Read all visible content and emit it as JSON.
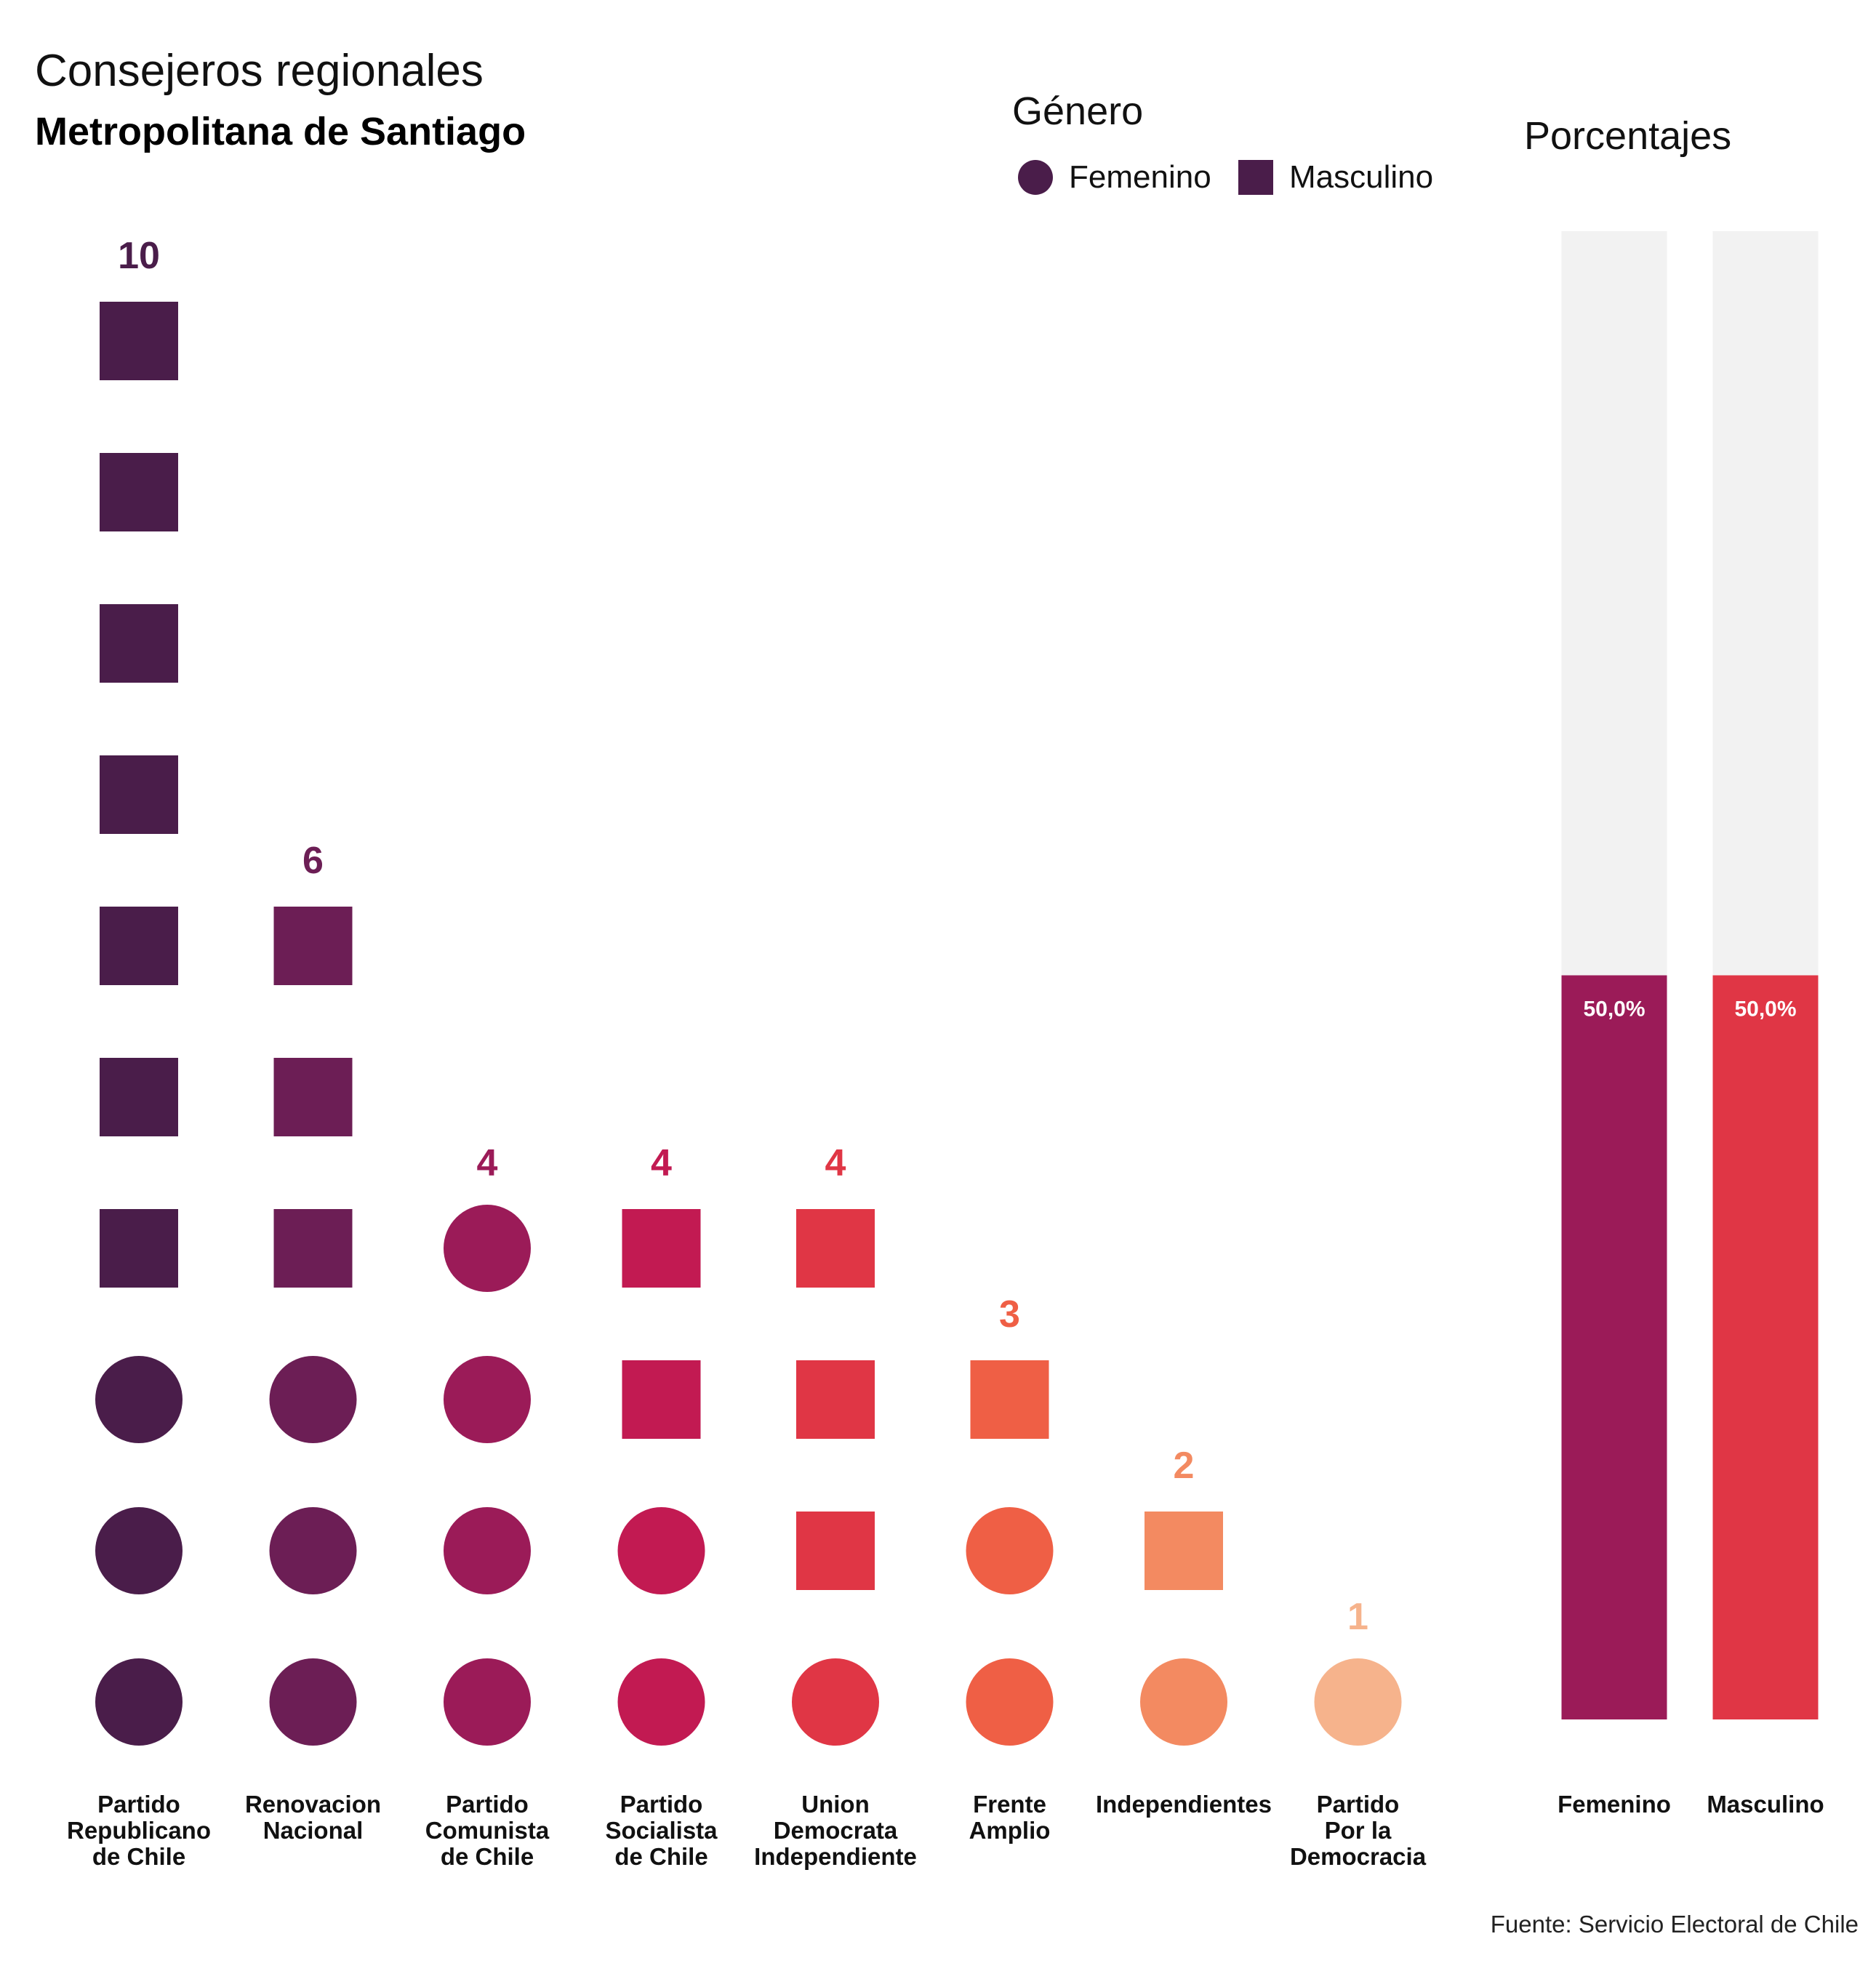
{
  "title": "Consejeros regionales",
  "subtitle": "Metropolitana de Santiago",
  "legend": {
    "title": "Género",
    "items": [
      {
        "label": "Femenino",
        "shape": "circle"
      },
      {
        "label": "Masculino",
        "shape": "square"
      }
    ],
    "color": "#4a1d4a"
  },
  "percent_panel": {
    "title": "Porcentajes"
  },
  "source": "Fuente: Servicio Electoral de Chile",
  "chart_data": [
    {
      "type": "dot-column",
      "categories": [
        {
          "label": [
            "Partido",
            "Republicano",
            "de Chile"
          ],
          "total": 10,
          "femenino": 3,
          "masculino": 7,
          "color": "#4a1d4a"
        },
        {
          "label": [
            "Renovacion",
            "Nacional"
          ],
          "total": 6,
          "femenino": 3,
          "masculino": 3,
          "color": "#6c1e55"
        },
        {
          "label": [
            "Partido",
            "Comunista",
            "de Chile"
          ],
          "total": 4,
          "femenino": 4,
          "masculino": 0,
          "color": "#9b1b58"
        },
        {
          "label": [
            "Partido",
            "Socialista",
            "de Chile"
          ],
          "total": 4,
          "femenino": 2,
          "masculino": 2,
          "color": "#c21a52"
        },
        {
          "label": [
            "Union",
            "Democrata",
            "Independiente"
          ],
          "total": 4,
          "femenino": 1,
          "masculino": 3,
          "color": "#e03645"
        },
        {
          "label": [
            "Frente",
            "Amplio"
          ],
          "total": 3,
          "femenino": 2,
          "masculino": 1,
          "color": "#ef5f45"
        },
        {
          "label": [
            "Independientes"
          ],
          "total": 2,
          "femenino": 1,
          "masculino": 1,
          "color": "#f38a61"
        },
        {
          "label": [
            "Partido",
            "Por la",
            "Democracia"
          ],
          "total": 1,
          "femenino": 1,
          "masculino": 0,
          "color": "#f6b38c"
        }
      ]
    },
    {
      "type": "bar",
      "categories": [
        "Femenino",
        "Masculino"
      ],
      "values": [
        50.0,
        50.0
      ],
      "value_labels": [
        "50,0%",
        "50,0%"
      ],
      "ylim": [
        0,
        100
      ],
      "colors": [
        "#9b1b58",
        "#e03645"
      ],
      "track_color": "#f2f2f2"
    }
  ]
}
